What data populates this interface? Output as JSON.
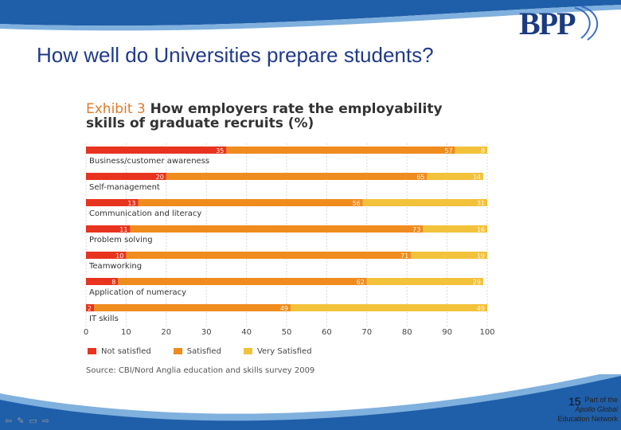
{
  "slide": {
    "title": "How well do Universities prepare students?",
    "logo_text": "BPP",
    "page_number": "15",
    "footer_brand": [
      "Part of the",
      "Apollo Global",
      "Education Network"
    ]
  },
  "exhibit": {
    "label": "Exhibit 3",
    "title_rest": "How employers rate the employability",
    "title_line2": "skills of graduate recruits (%)",
    "source": "Source: CBI/Nord Anglia education and skills survey 2009"
  },
  "chart_data": {
    "type": "bar",
    "stacked": true,
    "orientation": "horizontal",
    "categories": [
      "Business/customer awareness",
      "Self-management",
      "Communication and literacy",
      "Problem solving",
      "Teamworking",
      "Application of numeracy",
      "IT skills"
    ],
    "series": [
      {
        "name": "Not satisfied",
        "values": [
          35,
          20,
          13,
          11,
          10,
          8,
          2
        ],
        "color": "#e8331f"
      },
      {
        "name": "Satisfied",
        "values": [
          57,
          65,
          56,
          73,
          71,
          62,
          49
        ],
        "color": "#f08c1e"
      },
      {
        "name": "Very Satisfied",
        "values": [
          8,
          14,
          31,
          16,
          19,
          29,
          49
        ],
        "color": "#f3c23b"
      }
    ],
    "xlim": [
      0,
      100
    ],
    "xticks": [
      0,
      10,
      20,
      30,
      40,
      50,
      60,
      70,
      80,
      90,
      100
    ],
    "legend_position": "bottom"
  }
}
